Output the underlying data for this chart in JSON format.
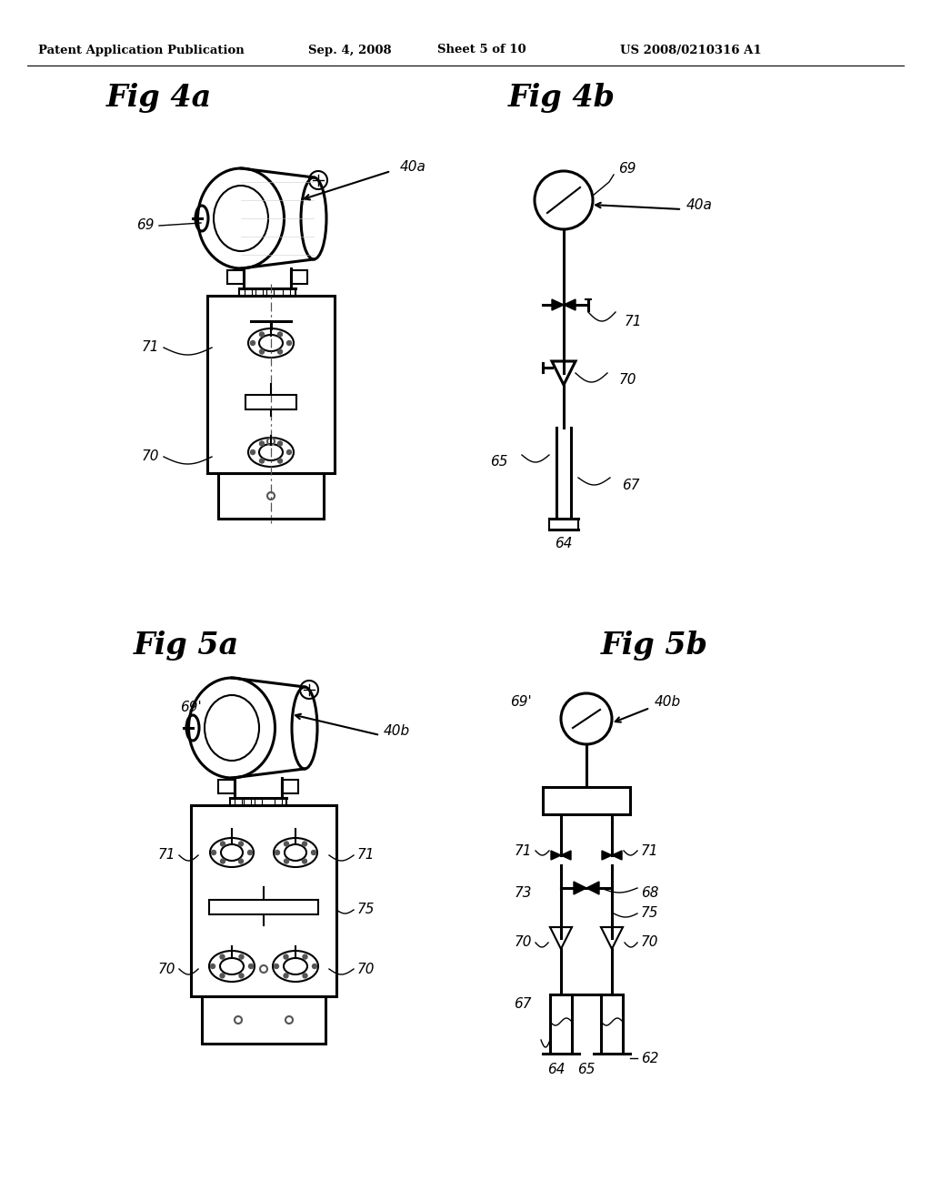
{
  "title_header": "Patent Application Publication",
  "date_header": "Sep. 4, 2008",
  "sheet_header": "Sheet 5 of 10",
  "patent_header": "US 2008/0210316 A1",
  "fig4a_title": "Fig 4a",
  "fig4b_title": "Fig 4b",
  "fig5a_title": "Fig 5a",
  "fig5b_title": "Fig 5b",
  "bg_color": "#ffffff",
  "line_color": "#000000"
}
